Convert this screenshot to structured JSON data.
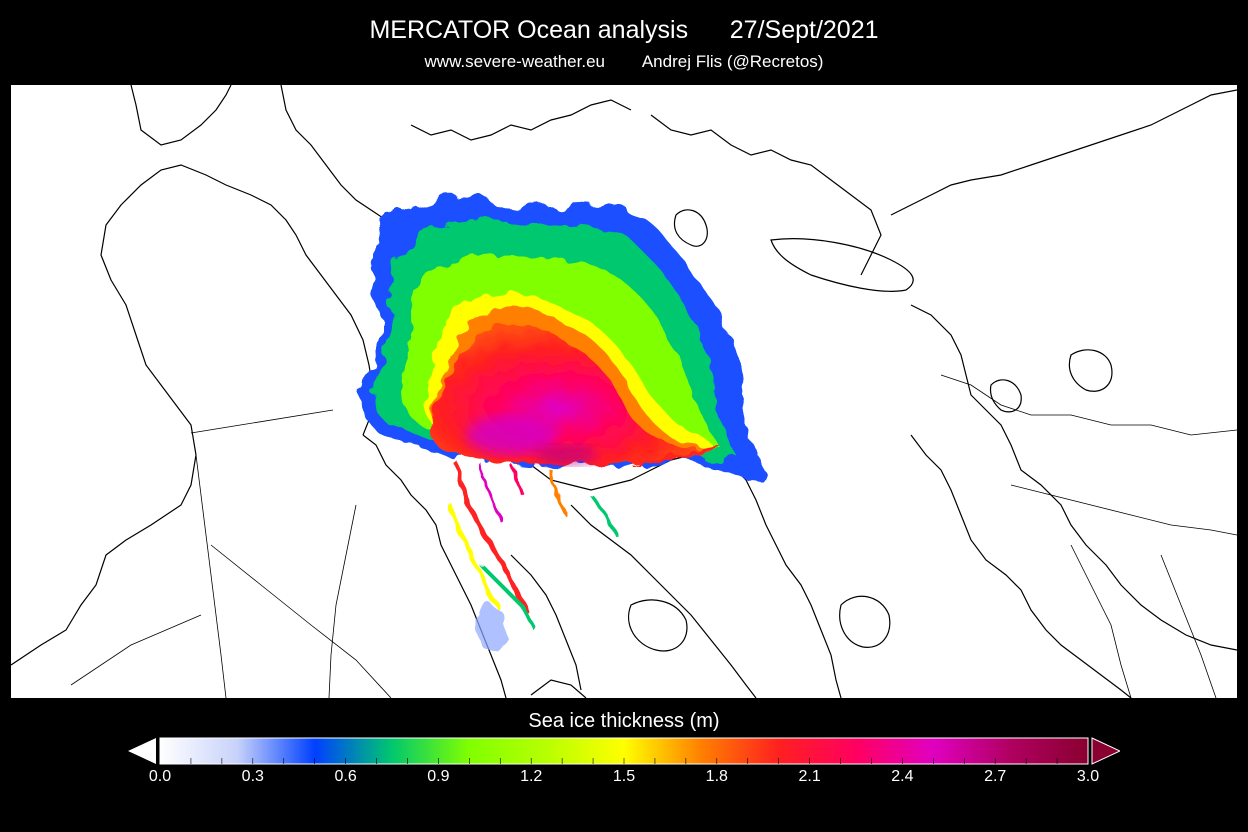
{
  "header": {
    "title": "MERCATOR Ocean analysis      27/Sept/2021",
    "subtitle": "www.severe-weather.eu        Andrej Flis (@Recretos)"
  },
  "colorbar": {
    "title": "Sea ice thickness (m)",
    "ticks": [
      "0.0",
      "0.3",
      "0.6",
      "0.9",
      "1.2",
      "1.5",
      "1.8",
      "2.1",
      "2.4",
      "2.7",
      "3.0"
    ],
    "range": [
      0.0,
      3.0
    ],
    "unit": "m",
    "extend": "both",
    "colors": [
      "#ffffff",
      "#c8d2fa",
      "#0040ff",
      "#00c86e",
      "#80ff00",
      "#b8ff00",
      "#ffff00",
      "#ff8000",
      "#ff2020",
      "#ff0060",
      "#e000c0",
      "#b00060",
      "#8a0030"
    ]
  },
  "map": {
    "projection": "north-polar-stereographic",
    "region": "Arctic",
    "background": "#ffffff",
    "coastline_color": "#000000"
  }
}
